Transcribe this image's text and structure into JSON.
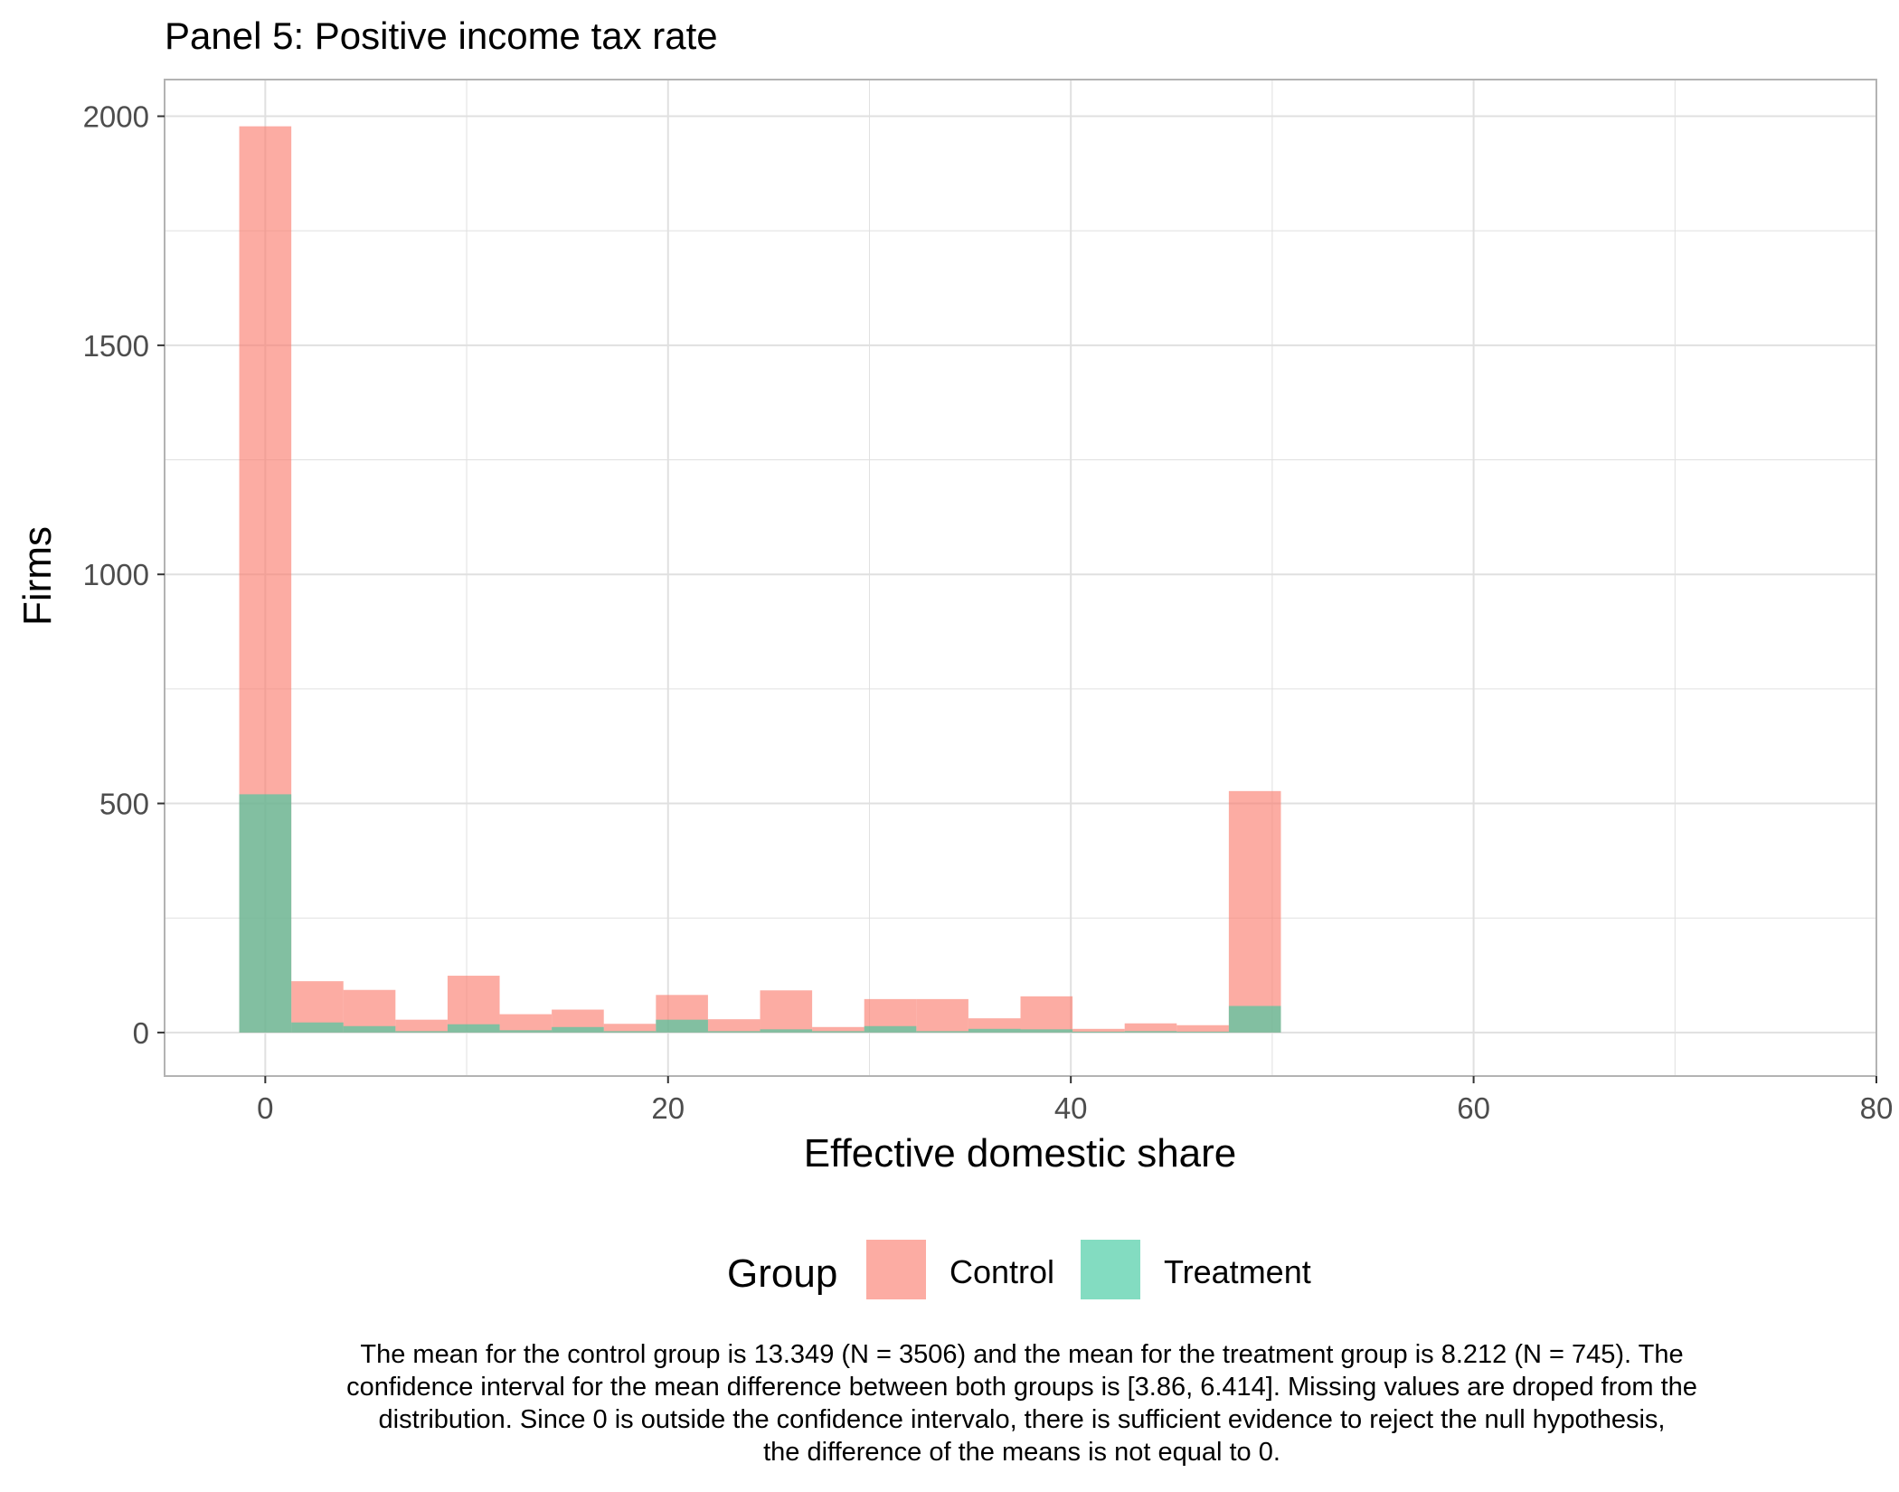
{
  "title": "Panel 5: Positive income tax rate",
  "colors": {
    "control": "#FA8072",
    "treatment": "#40C9A0",
    "grid": "#E0E0E0",
    "panel_border": "#B3B3B3",
    "axis_text": "#4D4D4D"
  },
  "chart_data": {
    "type": "bar",
    "subtype": "histogram-overlay",
    "title": "Panel 5: Positive income tax rate",
    "xlabel": "Effective domestic share",
    "ylabel": "Firms",
    "xlim": [
      -5,
      80
    ],
    "ylim": [
      -95,
      2080
    ],
    "x_ticks": [
      0,
      20,
      40,
      60,
      80
    ],
    "y_ticks": [
      0,
      500,
      1000,
      1500,
      2000
    ],
    "x_tick_labels": [
      "0",
      "20",
      "40",
      "60",
      "80"
    ],
    "y_tick_labels": [
      "0",
      "500",
      "1000",
      "1500",
      "2000"
    ],
    "grid": true,
    "bin_width": 2.586,
    "bin_centers": [
      0,
      2.586,
      5.172,
      7.758,
      10.345,
      12.931,
      15.517,
      18.103,
      20.69,
      23.276,
      25.862,
      28.448,
      31.034,
      33.621,
      36.207,
      38.793,
      41.379,
      43.966,
      46.552,
      49.138
    ],
    "series": [
      {
        "name": "Control",
        "values": [
          1978,
          112,
          93,
          28,
          124,
          40,
          50,
          19,
          82,
          29,
          92,
          12,
          73,
          73,
          31,
          79,
          8,
          20,
          16,
          527
        ]
      },
      {
        "name": "Treatment",
        "values": [
          520,
          22,
          14,
          3,
          18,
          5,
          12,
          3,
          28,
          3,
          7,
          3,
          14,
          3,
          8,
          7,
          2,
          3,
          2,
          58
        ]
      }
    ],
    "legend": {
      "title": "Group",
      "position": "bottom",
      "entries": [
        "Control",
        "Treatment"
      ]
    },
    "annotations": [
      "The mean for the control group is 13.349 (N = 3506) and the mean for the treatment group is 8.212 (N = 745). The",
      "confidence interval for the mean difference between both groups is [3.86, 6.414]. Missing values are droped from the",
      "distribution. Since 0 is outside the confidence intervalo, there is sufficient evidence to reject the null hypothesis,",
      "the difference of the means is not equal to 0."
    ]
  }
}
